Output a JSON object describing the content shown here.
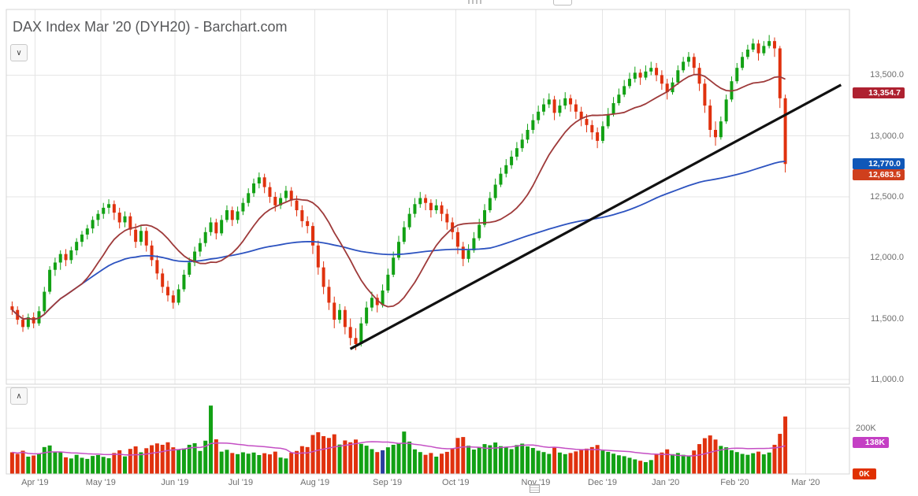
{
  "header": {
    "title": "DAX Index Mar '20 (DYH20) - Barchart.com"
  },
  "controls": {
    "main_pane_toggle_icon": "∨",
    "volume_pane_toggle_icon": "∧"
  },
  "badges": {
    "ma_red": {
      "label": "13,354.7",
      "value": 13354.7,
      "color": "#ae2130"
    },
    "last_price": {
      "label": "12,770.0",
      "value": 12770.0,
      "color": "#1057b8"
    },
    "ma_blue": {
      "label": "12,683.5",
      "value": 12683.5,
      "color": "#cf3f1d"
    },
    "avg_volume": {
      "label": "138K",
      "value": 138,
      "color": "#c43fc4"
    },
    "zero_volume": {
      "label": "0K",
      "value": 0,
      "color": "#e03000"
    }
  },
  "chart_data": {
    "type": "candlestick",
    "title": "DAX Index Mar '20 (DYH20)",
    "y_range": [
      10960,
      14040
    ],
    "price_tick_labels": [
      {
        "label": "13,500.0",
        "value": 13500
      },
      {
        "label": "13,000.0",
        "value": 13000
      },
      {
        "label": "12,500.0",
        "value": 12500
      },
      {
        "label": "12,000.0",
        "value": 12000
      },
      {
        "label": "11,500.0",
        "value": 11500
      },
      {
        "label": "11,000.0",
        "value": 11000
      }
    ],
    "volume_unit": "K",
    "volume_range_k": [
      0,
      380
    ],
    "volume_tick_labels": [
      {
        "label": "200K",
        "value": 200
      }
    ],
    "months": [
      {
        "label": "Apr '19",
        "pos": 0.034
      },
      {
        "label": "May '19",
        "pos": 0.112
      },
      {
        "label": "Jun '19",
        "pos": 0.2
      },
      {
        "label": "Jul '19",
        "pos": 0.278
      },
      {
        "label": "Aug '19",
        "pos": 0.366
      },
      {
        "label": "Sep '19",
        "pos": 0.452
      },
      {
        "label": "Oct '19",
        "pos": 0.533
      },
      {
        "label": "Nov '19",
        "pos": 0.628
      },
      {
        "label": "Dec '19",
        "pos": 0.707
      },
      {
        "label": "Jan '20",
        "pos": 0.782
      },
      {
        "label": "Feb '20",
        "pos": 0.864
      },
      {
        "label": "Mar '20",
        "pos": 0.948
      }
    ],
    "colors": {
      "up": "#12a114",
      "down": "#e0310e",
      "ma_fast": "#9e3a3a",
      "ma_slow": "#2d53c0",
      "volume_avg_line": "#c44ec4",
      "trendline": "#111111"
    },
    "overlays": {
      "ma_fast_window": 14,
      "ma_slow_window": 90,
      "volume_avg_window": 15,
      "trendline": {
        "x1_frac": 0.408,
        "price1": 11250,
        "x2_frac": 0.99,
        "price2": 13420
      }
    },
    "last_close": 12770.0,
    "ma_fast_last": 13354.7,
    "ma_slow_last": 12683.5,
    "avg_volume_last_k": 138,
    "volume_color_overrides": {
      "69": "#2b3f9e"
    },
    "bars_ohlcv": [
      [
        11600,
        11640,
        11530,
        11570,
        95
      ],
      [
        11570,
        11600,
        11450,
        11490,
        88
      ],
      [
        11490,
        11530,
        11390,
        11430,
        102
      ],
      [
        11430,
        11540,
        11410,
        11510,
        76
      ],
      [
        11510,
        11550,
        11420,
        11460,
        81
      ],
      [
        11460,
        11600,
        11440,
        11560,
        90
      ],
      [
        11560,
        11760,
        11540,
        11720,
        118
      ],
      [
        11720,
        11930,
        11700,
        11900,
        125
      ],
      [
        11900,
        12000,
        11850,
        11960,
        97
      ],
      [
        11960,
        12060,
        11900,
        12030,
        97
      ],
      [
        12030,
        12070,
        11930,
        11980,
        73
      ],
      [
        11980,
        12090,
        11950,
        12060,
        68
      ],
      [
        12060,
        12160,
        12020,
        12130,
        84
      ],
      [
        12130,
        12220,
        12090,
        12190,
        71
      ],
      [
        12190,
        12270,
        12150,
        12240,
        66
      ],
      [
        12240,
        12340,
        12200,
        12310,
        79
      ],
      [
        12310,
        12390,
        12260,
        12360,
        83
      ],
      [
        12360,
        12450,
        12320,
        12410,
        75
      ],
      [
        12410,
        12480,
        12360,
        12440,
        69
      ],
      [
        12440,
        12470,
        12310,
        12370,
        92
      ],
      [
        12370,
        12410,
        12240,
        12290,
        104
      ],
      [
        12290,
        12380,
        12250,
        12340,
        77
      ],
      [
        12340,
        12370,
        12180,
        12230,
        110
      ],
      [
        12230,
        12280,
        12080,
        12130,
        121
      ],
      [
        12130,
        12260,
        12100,
        12220,
        95
      ],
      [
        12220,
        12250,
        12050,
        12100,
        113
      ],
      [
        12100,
        12140,
        11930,
        11980,
        126
      ],
      [
        11980,
        12020,
        11820,
        11870,
        134
      ],
      [
        11870,
        11910,
        11710,
        11760,
        128
      ],
      [
        11760,
        11810,
        11640,
        11690,
        139
      ],
      [
        11690,
        11730,
        11580,
        11630,
        117
      ],
      [
        11630,
        11780,
        11610,
        11740,
        108
      ],
      [
        11740,
        11900,
        11720,
        11860,
        112
      ],
      [
        11860,
        12000,
        11840,
        11960,
        128
      ],
      [
        11960,
        12090,
        11930,
        12050,
        135
      ],
      [
        12050,
        12160,
        12010,
        12120,
        101
      ],
      [
        12120,
        12250,
        12090,
        12210,
        146
      ],
      [
        12210,
        12330,
        12180,
        12290,
        300
      ],
      [
        12290,
        12320,
        12150,
        12200,
        152
      ],
      [
        12200,
        12350,
        12180,
        12310,
        98
      ],
      [
        12310,
        12430,
        12290,
        12390,
        106
      ],
      [
        12390,
        12420,
        12260,
        12310,
        92
      ],
      [
        12310,
        12420,
        12280,
        12380,
        87
      ],
      [
        12380,
        12490,
        12350,
        12450,
        95
      ],
      [
        12450,
        12570,
        12420,
        12530,
        89
      ],
      [
        12530,
        12650,
        12500,
        12610,
        94
      ],
      [
        12610,
        12700,
        12570,
        12660,
        83
      ],
      [
        12660,
        12690,
        12530,
        12580,
        91
      ],
      [
        12580,
        12620,
        12450,
        12500,
        86
      ],
      [
        12500,
        12540,
        12380,
        12430,
        98
      ],
      [
        12430,
        12530,
        12400,
        12490,
        72
      ],
      [
        12490,
        12590,
        12460,
        12550,
        68
      ],
      [
        12550,
        12580,
        12420,
        12470,
        93
      ],
      [
        12470,
        12510,
        12340,
        12390,
        101
      ],
      [
        12390,
        12430,
        12250,
        12300,
        122
      ],
      [
        12300,
        12340,
        12200,
        12260,
        118
      ],
      [
        12260,
        12290,
        12030,
        12100,
        171
      ],
      [
        12100,
        12140,
        11860,
        11920,
        183
      ],
      [
        11920,
        11970,
        11700,
        11760,
        166
      ],
      [
        11760,
        11820,
        11570,
        11630,
        158
      ],
      [
        11630,
        11680,
        11420,
        11490,
        174
      ],
      [
        11490,
        11620,
        11460,
        11570,
        129
      ],
      [
        11570,
        11600,
        11370,
        11430,
        147
      ],
      [
        11430,
        11500,
        11280,
        11340,
        139
      ],
      [
        11340,
        11420,
        11240,
        11290,
        151
      ],
      [
        11290,
        11510,
        11270,
        11460,
        132
      ],
      [
        11460,
        11640,
        11440,
        11590,
        124
      ],
      [
        11590,
        11720,
        11560,
        11670,
        109
      ],
      [
        11670,
        11700,
        11550,
        11610,
        96
      ],
      [
        11610,
        11780,
        11590,
        11730,
        104
      ],
      [
        11730,
        11910,
        11710,
        11860,
        117
      ],
      [
        11860,
        12050,
        11840,
        12000,
        128
      ],
      [
        12000,
        12180,
        11980,
        12130,
        135
      ],
      [
        12130,
        12300,
        12110,
        12250,
        186
      ],
      [
        12250,
        12410,
        12230,
        12360,
        142
      ],
      [
        12360,
        12490,
        12330,
        12440,
        108
      ],
      [
        12440,
        12540,
        12410,
        12490,
        96
      ],
      [
        12490,
        12520,
        12390,
        12450,
        84
      ],
      [
        12450,
        12480,
        12330,
        12390,
        92
      ],
      [
        12390,
        12480,
        12360,
        12430,
        76
      ],
      [
        12430,
        12460,
        12300,
        12360,
        89
      ],
      [
        12360,
        12400,
        12230,
        12290,
        97
      ],
      [
        12290,
        12330,
        12150,
        12210,
        113
      ],
      [
        12210,
        12250,
        12030,
        12090,
        158
      ],
      [
        12090,
        12130,
        11930,
        11990,
        162
      ],
      [
        11990,
        12110,
        11960,
        12060,
        124
      ],
      [
        12060,
        12210,
        12040,
        12160,
        107
      ],
      [
        12160,
        12320,
        12140,
        12270,
        119
      ],
      [
        12270,
        12440,
        12250,
        12390,
        131
      ],
      [
        12390,
        12540,
        12370,
        12490,
        126
      ],
      [
        12490,
        12650,
        12470,
        12600,
        138
      ],
      [
        12600,
        12740,
        12580,
        12690,
        122
      ],
      [
        12690,
        12810,
        12660,
        12760,
        116
      ],
      [
        12760,
        12880,
        12730,
        12830,
        109
      ],
      [
        12830,
        12950,
        12800,
        12900,
        127
      ],
      [
        12900,
        13020,
        12870,
        12970,
        133
      ],
      [
        12970,
        13100,
        12940,
        13050,
        121
      ],
      [
        13050,
        13180,
        13020,
        13130,
        114
      ],
      [
        13130,
        13250,
        13100,
        13200,
        102
      ],
      [
        13200,
        13310,
        13170,
        13260,
        96
      ],
      [
        13260,
        13350,
        13230,
        13300,
        88
      ],
      [
        13300,
        13330,
        13130,
        13190,
        119
      ],
      [
        13190,
        13300,
        13160,
        13250,
        94
      ],
      [
        13250,
        13360,
        13220,
        13310,
        87
      ],
      [
        13310,
        13340,
        13200,
        13260,
        92
      ],
      [
        13260,
        13300,
        13140,
        13200,
        99
      ],
      [
        13200,
        13240,
        13080,
        13140,
        106
      ],
      [
        13140,
        13180,
        13030,
        13090,
        111
      ],
      [
        13090,
        13130,
        12970,
        13030,
        118
      ],
      [
        13030,
        13070,
        12900,
        12960,
        127
      ],
      [
        12960,
        13120,
        12940,
        13080,
        103
      ],
      [
        13080,
        13230,
        13060,
        13180,
        97
      ],
      [
        13180,
        13320,
        13160,
        13270,
        89
      ],
      [
        13270,
        13390,
        13250,
        13340,
        82
      ],
      [
        13340,
        13460,
        13320,
        13410,
        78
      ],
      [
        13410,
        13520,
        13390,
        13470,
        71
      ],
      [
        13470,
        13570,
        13440,
        13520,
        64
      ],
      [
        13520,
        13550,
        13420,
        13480,
        58
      ],
      [
        13480,
        13580,
        13460,
        13530,
        52
      ],
      [
        13530,
        13610,
        13500,
        13560,
        61
      ],
      [
        13560,
        13600,
        13450,
        13500,
        86
      ],
      [
        13500,
        13540,
        13380,
        13430,
        94
      ],
      [
        13430,
        13470,
        13300,
        13360,
        108
      ],
      [
        13360,
        13480,
        13340,
        13440,
        87
      ],
      [
        13440,
        13580,
        13420,
        13540,
        92
      ],
      [
        13540,
        13650,
        13520,
        13610,
        84
      ],
      [
        13610,
        13690,
        13570,
        13650,
        79
      ],
      [
        13650,
        13680,
        13500,
        13560,
        103
      ],
      [
        13560,
        13600,
        13370,
        13430,
        131
      ],
      [
        13430,
        13470,
        13190,
        13250,
        157
      ],
      [
        13250,
        13300,
        12990,
        13050,
        169
      ],
      [
        13050,
        13120,
        12920,
        12990,
        151
      ],
      [
        12990,
        13160,
        12970,
        13120,
        123
      ],
      [
        13120,
        13340,
        13100,
        13300,
        117
      ],
      [
        13300,
        13490,
        13280,
        13450,
        104
      ],
      [
        13450,
        13600,
        13430,
        13560,
        96
      ],
      [
        13560,
        13690,
        13540,
        13650,
        88
      ],
      [
        13650,
        13750,
        13630,
        13710,
        84
      ],
      [
        13710,
        13800,
        13690,
        13760,
        91
      ],
      [
        13760,
        13790,
        13620,
        13680,
        98
      ],
      [
        13680,
        13780,
        13660,
        13740,
        86
      ],
      [
        13740,
        13830,
        13720,
        13780,
        94
      ],
      [
        13780,
        13810,
        13650,
        13720,
        128
      ],
      [
        13720,
        13740,
        13230,
        13310,
        176
      ],
      [
        13310,
        13340,
        12700,
        12770,
        252
      ]
    ]
  }
}
